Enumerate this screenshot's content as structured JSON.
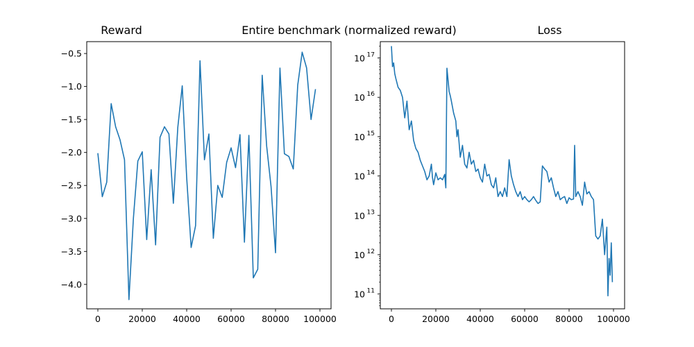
{
  "figure": {
    "suptitle": "Entire benchmark (normalized reward)"
  },
  "chart_data": [
    {
      "type": "line",
      "title": "Reward",
      "xlabel": "",
      "ylabel": "",
      "xlim": [
        -5000,
        105000
      ],
      "ylim": [
        -4.37,
        -0.32
      ],
      "grid": false,
      "xticks": [
        0,
        20000,
        40000,
        60000,
        80000,
        100000
      ],
      "xtick_labels": [
        "0",
        "20000",
        "40000",
        "60000",
        "80000",
        "100000"
      ],
      "yticks": [
        -4.0,
        -3.5,
        -3.0,
        -2.5,
        -2.0,
        -1.5,
        -1.0,
        -0.5
      ],
      "ytick_labels": [
        "−4.0",
        "−3.5",
        "−3.0",
        "−2.5",
        "−2.0",
        "−1.5",
        "−1.0",
        "−0.5"
      ],
      "series": [
        {
          "color": "#1f77b4",
          "x": [
            0,
            2000,
            4000,
            6000,
            8000,
            10000,
            12000,
            14000,
            16000,
            18000,
            20000,
            22000,
            24000,
            26000,
            28000,
            30000,
            32000,
            34000,
            36000,
            38000,
            40000,
            42000,
            44000,
            46000,
            48000,
            50000,
            52000,
            54000,
            56000,
            58000,
            60000,
            62000,
            64000,
            66000,
            68000,
            70000,
            72000,
            74000,
            76000,
            78000,
            80000,
            82000,
            84000,
            86000,
            88000,
            90000,
            92000,
            94000,
            96000,
            98000
          ],
          "y": [
            -2.01,
            -2.67,
            -2.45,
            -1.26,
            -1.61,
            -1.81,
            -2.11,
            -4.23,
            -3.0,
            -2.13,
            -1.99,
            -3.32,
            -2.26,
            -3.4,
            -1.77,
            -1.61,
            -1.72,
            -2.77,
            -1.62,
            -0.99,
            -2.38,
            -3.44,
            -3.11,
            -0.61,
            -2.11,
            -1.72,
            -3.3,
            -2.5,
            -2.68,
            -2.15,
            -1.93,
            -2.23,
            -1.73,
            -3.36,
            -1.74,
            -3.9,
            -3.77,
            -0.83,
            -1.9,
            -2.52,
            -3.52,
            -0.72,
            -2.02,
            -2.06,
            -2.25,
            -0.98,
            -0.48,
            -0.72,
            -1.5,
            -1.04
          ]
        }
      ]
    },
    {
      "type": "line",
      "title": "Loss",
      "xlabel": "",
      "ylabel": "",
      "yscale": "log",
      "xlim": [
        -5000,
        105000
      ],
      "ylim": [
        42000000000.0,
        2.6e+17
      ],
      "grid": false,
      "xticks": [
        0,
        20000,
        40000,
        60000,
        80000,
        100000
      ],
      "xtick_labels": [
        "0",
        "20000",
        "40000",
        "60000",
        "80000",
        "100000"
      ],
      "yticks": [
        100000000000.0,
        1000000000000.0,
        10000000000000.0,
        100000000000000.0,
        1000000000000000.0,
        1e+16,
        1e+17
      ],
      "ytick_labels": [
        "10",
        "10",
        "10",
        "10",
        "10",
        "10",
        "10"
      ],
      "ytick_exponents": [
        "11",
        "12",
        "13",
        "14",
        "15",
        "16",
        "17"
      ],
      "series": [
        {
          "color": "#1f77b4",
          "x": [
            0,
            500,
            1000,
            1500,
            2000,
            3000,
            4000,
            5000,
            6000,
            7000,
            7500,
            8000,
            9000,
            10000,
            11000,
            12000,
            13000,
            14000,
            15000,
            16000,
            17000,
            18000,
            18500,
            19000,
            20000,
            21000,
            22000,
            23000,
            24000,
            24500,
            25000,
            26000,
            26500,
            27000,
            28000,
            29000,
            29500,
            30000,
            31000,
            32000,
            33000,
            34000,
            35000,
            36000,
            37000,
            38000,
            39000,
            40000,
            41000,
            42000,
            43000,
            44000,
            45000,
            46000,
            47000,
            48000,
            49000,
            50000,
            51000,
            52000,
            53000,
            54000,
            55000,
            56000,
            57000,
            58000,
            59000,
            60000,
            61000,
            62000,
            63000,
            64000,
            65000,
            66000,
            67000,
            68000,
            69000,
            70000,
            71000,
            72000,
            73000,
            74000,
            75000,
            76000,
            77000,
            78000,
            79000,
            80000,
            81000,
            82000,
            82500,
            83000,
            84000,
            85000,
            86000,
            87000,
            88000,
            89000,
            90000,
            91000,
            92000,
            93000,
            94000,
            95000,
            96000,
            97000,
            97500,
            98000,
            98500,
            99000,
            99500
          ],
          "y": [
            2e+17,
            6e+16,
            7.5e+16,
            4e+16,
            3e+16,
            1.8e+16,
            1.5e+16,
            1e+16,
            3000000000000000.0,
            8000000000000000.0,
            3500000000000000.0,
            1500000000000000.0,
            2500000000000000.0,
            800000000000000.0,
            500000000000000.0,
            400000000000000.0,
            250000000000000.0,
            180000000000000.0,
            130000000000000.0,
            80000000000000.0,
            100000000000000.0,
            200000000000000.0,
            90000000000000.0,
            60000000000000.0,
            120000000000000.0,
            80000000000000.0,
            90000000000000.0,
            80000000000000.0,
            110000000000000.0,
            50000000000000.0,
            5.5e+16,
            1.4e+16,
            1.1e+16,
            8000000000000000.0,
            4000000000000000.0,
            2500000000000000.0,
            1000000000000000.0,
            1500000000000000.0,
            300000000000000.0,
            600000000000000.0,
            200000000000000.0,
            160000000000000.0,
            400000000000000.0,
            200000000000000.0,
            250000000000000.0,
            130000000000000.0,
            150000000000000.0,
            90000000000000.0,
            70000000000000.0,
            200000000000000.0,
            100000000000000.0,
            110000000000000.0,
            60000000000000.0,
            50000000000000.0,
            90000000000000.0,
            30000000000000.0,
            40000000000000.0,
            30000000000000.0,
            50000000000000.0,
            30000000000000.0,
            260000000000000.0,
            100000000000000.0,
            60000000000000.0,
            40000000000000.0,
            30000000000000.0,
            40000000000000.0,
            25000000000000.0,
            30000000000000.0,
            25000000000000.0,
            22000000000000.0,
            25000000000000.0,
            30000000000000.0,
            24000000000000.0,
            20000000000000.0,
            22000000000000.0,
            180000000000000.0,
            150000000000000.0,
            130000000000000.0,
            70000000000000.0,
            90000000000000.0,
            50000000000000.0,
            30000000000000.0,
            40000000000000.0,
            25000000000000.0,
            28000000000000.0,
            30000000000000.0,
            20000000000000.0,
            28000000000000.0,
            25000000000000.0,
            26000000000000.0,
            600000000000000.0,
            30000000000000.0,
            40000000000000.0,
            30000000000000.0,
            18000000000000.0,
            70000000000000.0,
            35000000000000.0,
            40000000000000.0,
            30000000000000.0,
            25000000000000.0,
            3000000000000.0,
            2500000000000.0,
            3000000000000.0,
            8000000000000.0,
            1000000000000.0,
            5000000000000.0,
            90000000000.0,
            800000000000.0,
            300000000000.0,
            2000000000000.0,
            200000000000.0
          ]
        }
      ]
    }
  ]
}
